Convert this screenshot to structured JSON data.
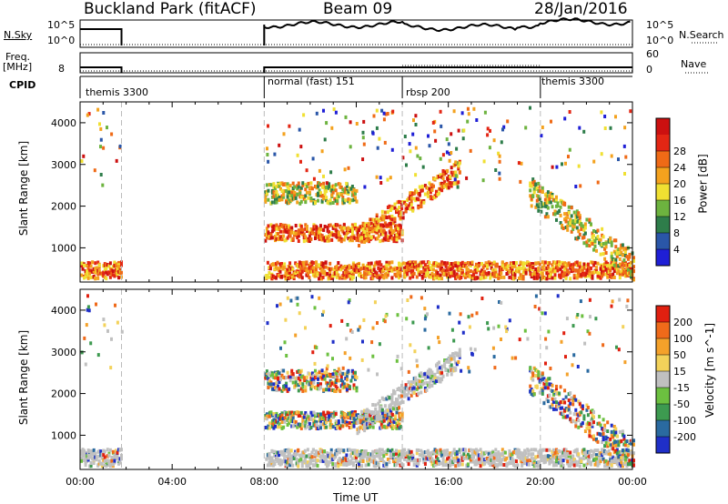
{
  "header": {
    "station": "Buckland Park (fitACF)",
    "beam": "Beam 09",
    "date": "28/Jan/2016"
  },
  "noise_panel": {
    "left_label": "N.Sky",
    "left_ticks": [
      "10^5",
      "10^0"
    ],
    "right_ticks": [
      "10^5",
      "10^0"
    ],
    "right_label": "N.Search"
  },
  "freq_panel": {
    "left_label_line1": "Freq.",
    "left_label_line2": "[MHz]",
    "left_ticks": [
      "8"
    ],
    "right_ticks": [
      "60",
      "0"
    ],
    "right_label": "Nave"
  },
  "cpid_panel": {
    "label": "CPID",
    "segments": [
      {
        "name": "themis 3300",
        "start": 0.0
      },
      {
        "name": "normal (fast) 151",
        "start": 8.0
      },
      {
        "name": "rbsp 200",
        "start": 14.0
      },
      {
        "name": "themis 3300",
        "start": 20.0
      }
    ]
  },
  "chart_data": [
    {
      "type": "heatmap",
      "ylabel": "Slant Range [km]",
      "xlabel": "Time UT",
      "x_range_hours": [
        0,
        24
      ],
      "ylim": [
        180,
        4500
      ],
      "yticks": [
        "1000",
        "2000",
        "3000",
        "4000"
      ],
      "xticks": [
        "00:00",
        "04:00",
        "08:00",
        "12:00",
        "16:00",
        "20:00",
        "00:00"
      ],
      "colorbar": {
        "label": "Power [dB]",
        "ticks": [
          "4",
          "8",
          "12",
          "16",
          "20",
          "24",
          "28"
        ],
        "colors": [
          "#1f1fd6",
          "#2a56a8",
          "#2e7d4a",
          "#6db33f",
          "#f0e032",
          "#f4a21e",
          "#ef6a16",
          "#e32614",
          "#cc1010"
        ]
      },
      "data_gap_hours": [
        1.8,
        8.0
      ],
      "echo_bands": [
        {
          "description": "ground scatter near range",
          "t": [
            0,
            24
          ],
          "range_km": [
            300,
            700
          ],
          "level": "high"
        },
        {
          "description": "ionospheric band",
          "t": [
            8,
            14
          ],
          "range_km": [
            1200,
            1600
          ],
          "level": "high"
        },
        {
          "description": "rising band",
          "t": [
            12,
            16.5
          ],
          "range_km": [
            1300,
            2900
          ],
          "level": "high"
        },
        {
          "description": "upper band",
          "t": [
            8,
            12
          ],
          "range_km": [
            2100,
            2600
          ],
          "level": "medium"
        },
        {
          "description": "descending band",
          "t": [
            19.5,
            24
          ],
          "range_km": [
            600,
            2400
          ],
          "level": "medium"
        }
      ]
    },
    {
      "type": "heatmap",
      "ylabel": "Slant Range [km]",
      "xlabel": "Time UT",
      "x_range_hours": [
        0,
        24
      ],
      "ylim": [
        180,
        4500
      ],
      "yticks": [
        "1000",
        "2000",
        "3000",
        "4000"
      ],
      "xticks": [
        "00:00",
        "04:00",
        "08:00",
        "12:00",
        "16:00",
        "20:00",
        "00:00"
      ],
      "colorbar": {
        "label": "Velocity [m s^-1]",
        "ticks": [
          "200",
          "100",
          "50",
          "15",
          "-15",
          "-50",
          "-100",
          "-200"
        ],
        "colors": [
          "#1f2fc8",
          "#2a6aa0",
          "#3d9a50",
          "#6cc040",
          "#c0c0c0",
          "#f3d25a",
          "#f4a12a",
          "#ef6a1a",
          "#e02010"
        ]
      },
      "data_gap_hours": [
        1.8,
        8.0
      ],
      "echo_bands": [
        {
          "description": "ground scatter near range",
          "t": [
            0,
            24
          ],
          "range_km": [
            300,
            700
          ],
          "level": "low"
        },
        {
          "description": "ionospheric band",
          "t": [
            8,
            14
          ],
          "range_km": [
            1200,
            1600
          ],
          "level": "mixed"
        },
        {
          "description": "rising band",
          "t": [
            12,
            16.5
          ],
          "range_km": [
            1300,
            2900
          ],
          "level": "low"
        },
        {
          "description": "upper band",
          "t": [
            8,
            12
          ],
          "range_km": [
            2100,
            2600
          ],
          "level": "mixed"
        },
        {
          "description": "descending band",
          "t": [
            19.5,
            24
          ],
          "range_km": [
            600,
            2400
          ],
          "level": "mixed"
        }
      ]
    }
  ]
}
